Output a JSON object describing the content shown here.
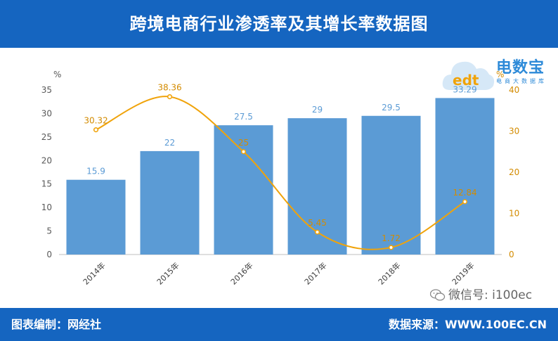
{
  "header": {
    "title": "跨境电商行业渗透率及其增长率数据图"
  },
  "footer": {
    "left": "图表编制：网经社",
    "right": "数据来源：WWW.100EC.CN"
  },
  "watermark": {
    "wechat": "微信号: i100ec",
    "logo_text": "电数宝",
    "logo_sub": "电商大数据库",
    "logo_mark": "edt"
  },
  "colors": {
    "header_bg": "#1565c0",
    "bar": "#5b9bd5",
    "line": "#f0a30a",
    "axis_right": "#d38b00"
  },
  "chart_data": {
    "type": "bar+line",
    "categories": [
      "2014年",
      "2015年",
      "2016年",
      "2017年",
      "2018年",
      "2019年"
    ],
    "series": [
      {
        "type": "bar",
        "axis": "left",
        "values": [
          15.9,
          22,
          27.5,
          29,
          29.5,
          33.29
        ],
        "labels": [
          "15.9",
          "22",
          "27.5",
          "29",
          "29.5",
          "33.29"
        ]
      },
      {
        "type": "line",
        "axis": "right",
        "values": [
          30.32,
          38.36,
          25,
          5.45,
          1.72,
          12.84
        ],
        "labels": [
          "30.32",
          "38.36",
          "25",
          "5.45",
          "1.72",
          "12.84"
        ]
      }
    ],
    "y_left": {
      "unit": "%",
      "min": 0,
      "max": 35,
      "ticks": [
        "0",
        "5",
        "10",
        "15",
        "20",
        "25",
        "30",
        "35"
      ]
    },
    "y_right": {
      "unit": "%",
      "min": 0,
      "max": 40,
      "ticks": [
        "0",
        "10",
        "20",
        "30",
        "40"
      ]
    },
    "grid": false
  }
}
